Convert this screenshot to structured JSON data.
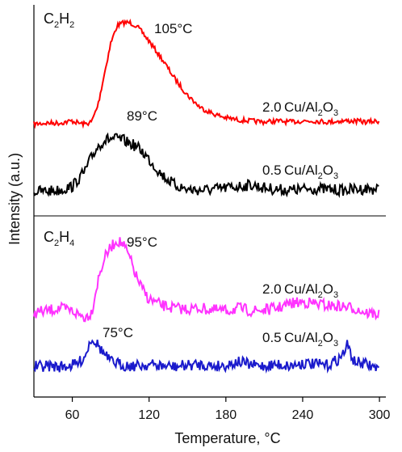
{
  "chart_data": {
    "type": "line",
    "xlabel": "Temperature, °C",
    "ylabel": "Intensity (a.u.)",
    "xlim": [
      30,
      305
    ],
    "xticks": [
      60,
      120,
      180,
      240,
      300
    ],
    "grid": false,
    "panels": [
      {
        "label_main": "C",
        "label_sub1": "2",
        "label_mid": "H",
        "label_sub2": "2",
        "series": [
          {
            "name": "2.0 Cu/Al2O3",
            "label_a": "2.0 Cu/Al",
            "label_s1": "2",
            "label_b": "O",
            "label_s2": "3",
            "color": "#ff0000",
            "peak_label": "105°C",
            "peak_x": 105,
            "x": [
              30,
              40,
              50,
              60,
              65,
              70,
              75,
              80,
              85,
              90,
              95,
              100,
              105,
              110,
              115,
              120,
              130,
              140,
              150,
              160,
              170,
              180,
              190,
              200,
              210,
              220,
              230,
              240,
              250,
              260,
              270,
              280,
              290,
              300
            ],
            "y": [
              0.02,
              0.03,
              0.03,
              0.05,
              0.03,
              0.02,
              0.04,
              0.2,
              0.5,
              0.8,
              0.97,
              1.0,
              1.0,
              0.97,
              0.9,
              0.82,
              0.65,
              0.46,
              0.3,
              0.18,
              0.12,
              0.08,
              0.06,
              0.05,
              0.04,
              0.05,
              0.04,
              0.05,
              0.05,
              0.04,
              0.05,
              0.05,
              0.04,
              0.05
            ]
          },
          {
            "name": "0.5 Cu/Al2O3",
            "label_a": "0.5 Cu/Al",
            "label_s1": "2",
            "label_b": "O",
            "label_s2": "3",
            "color": "#000000",
            "peak_label": "89°C",
            "peak_x": 89,
            "x": [
              30,
              40,
              50,
              60,
              70,
              75,
              80,
              85,
              90,
              95,
              100,
              105,
              110,
              115,
              120,
              125,
              130,
              140,
              150,
              160,
              170,
              180,
              190,
              200,
              210,
              220,
              230,
              240,
              250,
              260,
              270,
              280,
              290,
              300
            ],
            "y": [
              0.03,
              0.04,
              0.05,
              0.1,
              0.3,
              0.48,
              0.62,
              0.7,
              0.72,
              0.72,
              0.7,
              0.66,
              0.62,
              0.55,
              0.45,
              0.35,
              0.25,
              0.12,
              0.06,
              0.05,
              0.06,
              0.08,
              0.1,
              0.12,
              0.08,
              0.06,
              0.05,
              0.06,
              0.07,
              0.06,
              0.05,
              0.06,
              0.07,
              0.06
            ]
          }
        ]
      },
      {
        "label_main": "C",
        "label_sub1": "2",
        "label_mid": "H",
        "label_sub2": "4",
        "series": [
          {
            "name": "2.0 Cu/Al2O3",
            "label_a": "2.0 Cu/Al",
            "label_s1": "2",
            "label_b": "O",
            "label_s2": "3",
            "color": "#ff33ff",
            "peak_label": "95°C",
            "peak_x": 95,
            "x": [
              30,
              40,
              50,
              60,
              65,
              70,
              75,
              80,
              85,
              90,
              95,
              100,
              105,
              110,
              115,
              120,
              130,
              140,
              150,
              160,
              170,
              180,
              190,
              200,
              210,
              220,
              230,
              240,
              250,
              260,
              270,
              280,
              290,
              300
            ],
            "y": [
              0.1,
              0.12,
              0.15,
              0.12,
              0.08,
              0.05,
              0.1,
              0.45,
              0.7,
              0.82,
              0.9,
              0.85,
              0.7,
              0.5,
              0.35,
              0.25,
              0.18,
              0.15,
              0.14,
              0.15,
              0.13,
              0.12,
              0.15,
              0.12,
              0.13,
              0.15,
              0.2,
              0.22,
              0.2,
              0.18,
              0.17,
              0.15,
              0.1,
              0.08
            ]
          },
          {
            "name": "0.5 Cu/Al2O3",
            "label_a": "0.5 Cu/Al",
            "label_s1": "2",
            "label_b": "O",
            "label_s2": "3",
            "color": "#1a1acc",
            "peak_label": "75°C",
            "peak_x": 75,
            "x": [
              30,
              40,
              50,
              60,
              65,
              70,
              75,
              80,
              85,
              90,
              100,
              110,
              120,
              130,
              140,
              150,
              160,
              170,
              180,
              190,
              200,
              210,
              220,
              230,
              240,
              250,
              260,
              270,
              275,
              280,
              290,
              300
            ],
            "y": [
              0.05,
              0.06,
              0.05,
              0.07,
              0.1,
              0.2,
              0.45,
              0.35,
              0.22,
              0.12,
              0.07,
              0.06,
              0.08,
              0.06,
              0.05,
              0.07,
              0.08,
              0.06,
              0.07,
              0.12,
              0.07,
              0.06,
              0.08,
              0.06,
              0.1,
              0.08,
              0.07,
              0.18,
              0.35,
              0.12,
              0.08,
              0.02
            ]
          }
        ]
      }
    ]
  }
}
